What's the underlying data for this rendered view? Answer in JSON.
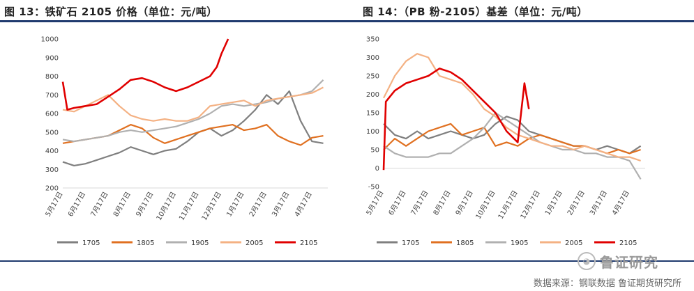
{
  "titles": {
    "left": "图 13：铁矿石 2105 价格（单位：元/吨）",
    "right": "图 14：（PB 粉-2105）基差（单位：元/吨）"
  },
  "source": "数据来源：钢联数据  鲁证期货研究所",
  "watermark": "鲁证研究",
  "watermark_icon": "wechat-icon",
  "colors": {
    "1705": "#7f7f7f",
    "1805": "#e07020",
    "1905": "#b0b0b0",
    "2005": "#f4b183",
    "2105": "#e00000",
    "rule": "#1f3a6e"
  },
  "chart_data": [
    {
      "type": "line",
      "name": "left",
      "x_ticks": [
        "5月17日",
        "6月17日",
        "7月17日",
        "8月17日",
        "9月17日",
        "10月17日",
        "11月17日",
        "12月17日",
        "1月17日",
        "2月17日",
        "3月17日",
        "4月17日"
      ],
      "yticks": [
        200,
        300,
        400,
        500,
        600,
        700,
        800,
        900,
        1000
      ],
      "ylim": [
        200,
        1000
      ],
      "legend": [
        "1705",
        "1805",
        "1905",
        "2005",
        "2105"
      ],
      "legend_position": "bottom",
      "series": [
        {
          "name": "1705",
          "values": [
            [
              0,
              340
            ],
            [
              0.5,
              320
            ],
            [
              1,
              330
            ],
            [
              1.5,
              350
            ],
            [
              2,
              370
            ],
            [
              2.5,
              390
            ],
            [
              3,
              420
            ],
            [
              3.5,
              400
            ],
            [
              4,
              380
            ],
            [
              4.5,
              400
            ],
            [
              5,
              410
            ],
            [
              5.5,
              450
            ],
            [
              6,
              500
            ],
            [
              6.5,
              520
            ],
            [
              7,
              480
            ],
            [
              7.5,
              510
            ],
            [
              8,
              560
            ],
            [
              8.5,
              620
            ],
            [
              9,
              700
            ],
            [
              9.5,
              650
            ],
            [
              10,
              720
            ],
            [
              10.5,
              560
            ],
            [
              11,
              450
            ],
            [
              11.5,
              440
            ]
          ]
        },
        {
          "name": "1805",
          "values": [
            [
              0,
              440
            ],
            [
              0.5,
              450
            ],
            [
              1,
              460
            ],
            [
              1.5,
              470
            ],
            [
              2,
              480
            ],
            [
              2.5,
              510
            ],
            [
              3,
              540
            ],
            [
              3.5,
              520
            ],
            [
              4,
              470
            ],
            [
              4.5,
              440
            ],
            [
              5,
              460
            ],
            [
              5.5,
              480
            ],
            [
              6,
              500
            ],
            [
              6.5,
              520
            ],
            [
              7,
              530
            ],
            [
              7.5,
              540
            ],
            [
              8,
              510
            ],
            [
              8.5,
              520
            ],
            [
              9,
              540
            ],
            [
              9.5,
              480
            ],
            [
              10,
              450
            ],
            [
              10.5,
              430
            ],
            [
              11,
              470
            ],
            [
              11.5,
              480
            ]
          ]
        },
        {
          "name": "1905",
          "values": [
            [
              0,
              460
            ],
            [
              0.5,
              450
            ],
            [
              1,
              460
            ],
            [
              1.5,
              470
            ],
            [
              2,
              480
            ],
            [
              2.5,
              500
            ],
            [
              3,
              510
            ],
            [
              3.5,
              500
            ],
            [
              4,
              510
            ],
            [
              4.5,
              520
            ],
            [
              5,
              530
            ],
            [
              5.5,
              550
            ],
            [
              6,
              570
            ],
            [
              6.5,
              600
            ],
            [
              7,
              640
            ],
            [
              7.5,
              650
            ],
            [
              8,
              640
            ],
            [
              8.5,
              650
            ],
            [
              9,
              660
            ],
            [
              9.5,
              680
            ],
            [
              10,
              690
            ],
            [
              10.5,
              700
            ],
            [
              11,
              720
            ],
            [
              11.5,
              780
            ]
          ]
        },
        {
          "name": "2005",
          "values": [
            [
              0,
              620
            ],
            [
              0.5,
              610
            ],
            [
              1,
              640
            ],
            [
              1.5,
              670
            ],
            [
              2,
              700
            ],
            [
              2.5,
              640
            ],
            [
              3,
              590
            ],
            [
              3.5,
              570
            ],
            [
              4,
              560
            ],
            [
              4.5,
              570
            ],
            [
              5,
              560
            ],
            [
              5.5,
              560
            ],
            [
              6,
              580
            ],
            [
              6.5,
              640
            ],
            [
              7,
              650
            ],
            [
              7.5,
              660
            ],
            [
              8,
              670
            ],
            [
              8.5,
              640
            ],
            [
              9,
              670
            ],
            [
              9.5,
              680
            ],
            [
              10,
              690
            ],
            [
              10.5,
              700
            ],
            [
              11,
              710
            ],
            [
              11.5,
              740
            ]
          ]
        },
        {
          "name": "2105",
          "values": [
            [
              0,
              770
            ],
            [
              0.2,
              620
            ],
            [
              0.5,
              630
            ],
            [
              1,
              640
            ],
            [
              1.5,
              650
            ],
            [
              2,
              690
            ],
            [
              2.5,
              730
            ],
            [
              3,
              780
            ],
            [
              3.5,
              790
            ],
            [
              4,
              770
            ],
            [
              4.5,
              740
            ],
            [
              5,
              720
            ],
            [
              5.5,
              740
            ],
            [
              6,
              770
            ],
            [
              6.5,
              800
            ],
            [
              6.8,
              850
            ],
            [
              7,
              920
            ],
            [
              7.3,
              1000
            ]
          ]
        }
      ]
    },
    {
      "type": "line",
      "name": "right",
      "x_ticks": [
        "5月17日",
        "6月17日",
        "7月17日",
        "8月17日",
        "9月17日",
        "10月17日",
        "11月17日",
        "12月17日",
        "1月17日",
        "2月17日",
        "3月17日",
        "4月17日"
      ],
      "yticks": [
        -50,
        0,
        50,
        100,
        150,
        200,
        250,
        300,
        350
      ],
      "ylim": [
        -50,
        350
      ],
      "legend": [
        "1705",
        "1805",
        "1905",
        "2005",
        "2105"
      ],
      "legend_position": "bottom",
      "series": [
        {
          "name": "1705",
          "values": [
            [
              0,
              120
            ],
            [
              0.5,
              90
            ],
            [
              1,
              80
            ],
            [
              1.5,
              100
            ],
            [
              2,
              80
            ],
            [
              2.5,
              90
            ],
            [
              3,
              100
            ],
            [
              3.5,
              90
            ],
            [
              4,
              80
            ],
            [
              4.5,
              90
            ],
            [
              5,
              120
            ],
            [
              5.5,
              140
            ],
            [
              6,
              130
            ],
            [
              6.5,
              100
            ],
            [
              7,
              90
            ],
            [
              7.5,
              80
            ],
            [
              8,
              70
            ],
            [
              8.5,
              60
            ],
            [
              9,
              60
            ],
            [
              9.5,
              50
            ],
            [
              10,
              60
            ],
            [
              10.5,
              50
            ],
            [
              11,
              40
            ],
            [
              11.5,
              60
            ]
          ]
        },
        {
          "name": "1805",
          "values": [
            [
              0,
              50
            ],
            [
              0.5,
              80
            ],
            [
              1,
              60
            ],
            [
              1.5,
              80
            ],
            [
              2,
              100
            ],
            [
              2.5,
              110
            ],
            [
              3,
              120
            ],
            [
              3.5,
              90
            ],
            [
              4,
              100
            ],
            [
              4.5,
              110
            ],
            [
              5,
              60
            ],
            [
              5.5,
              70
            ],
            [
              6,
              60
            ],
            [
              6.5,
              80
            ],
            [
              7,
              90
            ],
            [
              7.5,
              80
            ],
            [
              8,
              70
            ],
            [
              8.5,
              60
            ],
            [
              9,
              60
            ],
            [
              9.5,
              50
            ],
            [
              10,
              40
            ],
            [
              10.5,
              50
            ],
            [
              11,
              40
            ],
            [
              11.5,
              50
            ]
          ]
        },
        {
          "name": "1905",
          "values": [
            [
              0,
              60
            ],
            [
              0.5,
              40
            ],
            [
              1,
              30
            ],
            [
              1.5,
              30
            ],
            [
              2,
              30
            ],
            [
              2.5,
              40
            ],
            [
              3,
              40
            ],
            [
              3.5,
              60
            ],
            [
              4,
              80
            ],
            [
              4.5,
              110
            ],
            [
              5,
              150
            ],
            [
              5.5,
              130
            ],
            [
              6,
              110
            ],
            [
              6.5,
              90
            ],
            [
              7,
              70
            ],
            [
              7.5,
              60
            ],
            [
              8,
              50
            ],
            [
              8.5,
              50
            ],
            [
              9,
              40
            ],
            [
              9.5,
              40
            ],
            [
              10,
              30
            ],
            [
              10.5,
              30
            ],
            [
              11,
              20
            ],
            [
              11.5,
              -30
            ]
          ]
        },
        {
          "name": "2005",
          "values": [
            [
              0,
              190
            ],
            [
              0.5,
              250
            ],
            [
              1,
              290
            ],
            [
              1.5,
              310
            ],
            [
              2,
              300
            ],
            [
              2.5,
              250
            ],
            [
              3,
              240
            ],
            [
              3.5,
              230
            ],
            [
              4,
              200
            ],
            [
              4.5,
              160
            ],
            [
              5,
              140
            ],
            [
              5.5,
              110
            ],
            [
              6,
              90
            ],
            [
              6.5,
              80
            ],
            [
              7,
              70
            ],
            [
              7.5,
              60
            ],
            [
              8,
              60
            ],
            [
              8.5,
              50
            ],
            [
              9,
              60
            ],
            [
              9.5,
              50
            ],
            [
              10,
              40
            ],
            [
              10.5,
              30
            ],
            [
              11,
              30
            ],
            [
              11.5,
              20
            ]
          ]
        },
        {
          "name": "2105",
          "values": [
            [
              0,
              -5
            ],
            [
              0.1,
              180
            ],
            [
              0.5,
              210
            ],
            [
              1,
              230
            ],
            [
              1.5,
              240
            ],
            [
              2,
              250
            ],
            [
              2.5,
              270
            ],
            [
              3,
              260
            ],
            [
              3.5,
              240
            ],
            [
              4,
              210
            ],
            [
              4.5,
              180
            ],
            [
              5,
              150
            ],
            [
              5.5,
              100
            ],
            [
              6,
              70
            ],
            [
              6.3,
              230
            ],
            [
              6.5,
              160
            ]
          ]
        }
      ]
    }
  ]
}
